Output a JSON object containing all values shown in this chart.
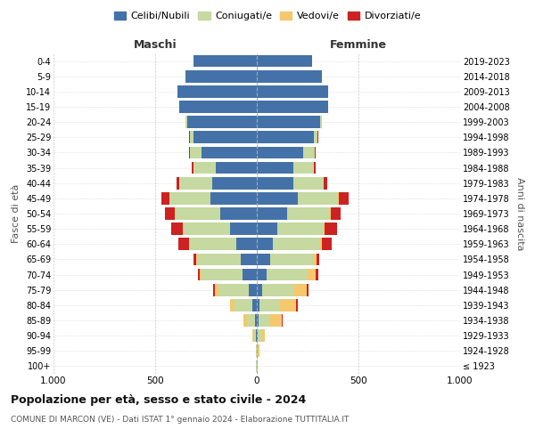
{
  "age_groups": [
    "100+",
    "95-99",
    "90-94",
    "85-89",
    "80-84",
    "75-79",
    "70-74",
    "65-69",
    "60-64",
    "55-59",
    "50-54",
    "45-49",
    "40-44",
    "35-39",
    "30-34",
    "25-29",
    "20-24",
    "15-19",
    "10-14",
    "5-9",
    "0-4"
  ],
  "birth_years": [
    "≤ 1923",
    "1924-1928",
    "1929-1933",
    "1934-1938",
    "1939-1943",
    "1944-1948",
    "1949-1953",
    "1954-1958",
    "1959-1963",
    "1964-1968",
    "1969-1973",
    "1974-1978",
    "1979-1983",
    "1984-1988",
    "1989-1993",
    "1994-1998",
    "1999-2003",
    "2004-2008",
    "2009-2013",
    "2014-2018",
    "2019-2023"
  ],
  "maschi": {
    "celibi": [
      2,
      2,
      5,
      10,
      20,
      40,
      70,
      80,
      100,
      130,
      180,
      230,
      220,
      200,
      270,
      310,
      340,
      380,
      390,
      350,
      310
    ],
    "coniugati": [
      1,
      3,
      10,
      40,
      90,
      150,
      200,
      210,
      230,
      230,
      220,
      200,
      160,
      110,
      60,
      20,
      10,
      2,
      1,
      0,
      0
    ],
    "vedovi": [
      0,
      1,
      5,
      15,
      20,
      15,
      10,
      8,
      5,
      3,
      2,
      1,
      0,
      0,
      0,
      0,
      0,
      0,
      0,
      0,
      0
    ],
    "divorziati": [
      0,
      0,
      1,
      2,
      3,
      8,
      10,
      15,
      50,
      60,
      50,
      40,
      15,
      10,
      5,
      2,
      1,
      0,
      0,
      0,
      0
    ]
  },
  "femmine": {
    "nubili": [
      2,
      2,
      5,
      8,
      15,
      25,
      50,
      65,
      80,
      100,
      150,
      200,
      180,
      180,
      230,
      280,
      310,
      350,
      350,
      320,
      270
    ],
    "coniugate": [
      1,
      4,
      15,
      55,
      100,
      160,
      200,
      210,
      230,
      230,
      210,
      200,
      150,
      100,
      55,
      20,
      8,
      2,
      0,
      0,
      0
    ],
    "vedove": [
      1,
      5,
      20,
      60,
      80,
      60,
      40,
      20,
      10,
      5,
      3,
      2,
      1,
      0,
      0,
      0,
      0,
      0,
      0,
      0,
      0
    ],
    "divorziate": [
      0,
      0,
      1,
      2,
      5,
      8,
      12,
      10,
      50,
      60,
      50,
      50,
      15,
      8,
      5,
      2,
      1,
      0,
      0,
      0,
      0
    ]
  },
  "colors": {
    "celibi_nubili": "#4472a8",
    "coniugati": "#c5d9a0",
    "vedovi": "#f5c86e",
    "divorziati": "#cc2222"
  },
  "title": "Popolazione per età, sesso e stato civile - 2024",
  "subtitle": "COMUNE DI MARCON (VE) - Dati ISTAT 1° gennaio 2024 - Elaborazione TUTTITALIA.IT",
  "xlabel_left": "Maschi",
  "xlabel_right": "Femmine",
  "ylabel_left": "Fasce di età",
  "ylabel_right": "Anni di nascita",
  "xlim": 1000,
  "legend_labels": [
    "Celibi/Nubili",
    "Coniugati/e",
    "Vedovi/e",
    "Divorziati/e"
  ],
  "background_color": "#ffffff",
  "grid_color": "#cccccc"
}
